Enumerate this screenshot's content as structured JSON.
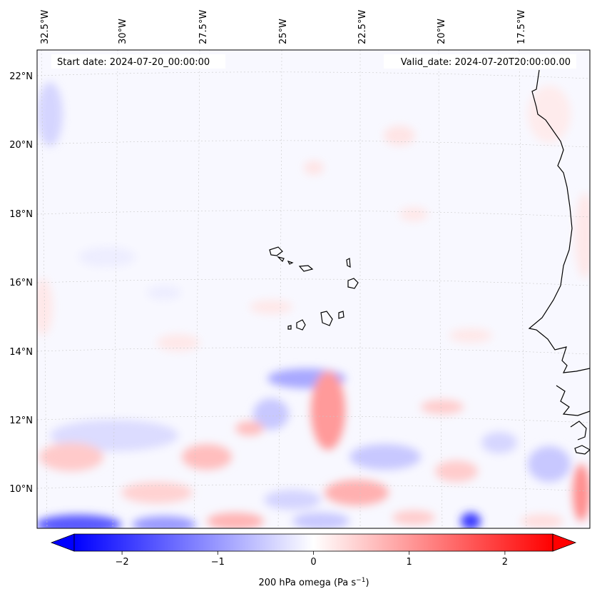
{
  "map": {
    "start_label": "Start date: 2024-07-20_00:00:00",
    "valid_label": "Valid_date: 2024-07-20T20:00:00.00",
    "lon_labels": [
      "32.5°W",
      "30°W",
      "27.5°W",
      "25°W",
      "22.5°W",
      "20°W",
      "17.5°W"
    ],
    "lat_labels": [
      "22°N",
      "20°N",
      "18°N",
      "16°N",
      "14°N",
      "12°N",
      "10°N"
    ],
    "field_colors": {
      "background": "#f8f8ff",
      "strong_negative": "#3a3aff",
      "negative": "#b4b4ff",
      "weak_negative": "#e6e6ff",
      "weak_positive": "#ffe6e6",
      "positive": "#ffb4b4",
      "strong_positive": "#ff7070"
    },
    "coastline_color": "#000000",
    "grid_color": "#c8c8c8"
  },
  "colorbar": {
    "ticks": [
      "−2",
      "−1",
      "0",
      "1",
      "2"
    ],
    "tick_values": [
      -2,
      -1,
      0,
      1,
      2
    ],
    "range": [
      -2.5,
      2.5
    ],
    "label_main": "200 hPa omega (Pa s",
    "label_exp": "−1",
    "label_end": ")",
    "cmap": [
      "#0000ff",
      "#ffffff",
      "#ff0000"
    ]
  }
}
